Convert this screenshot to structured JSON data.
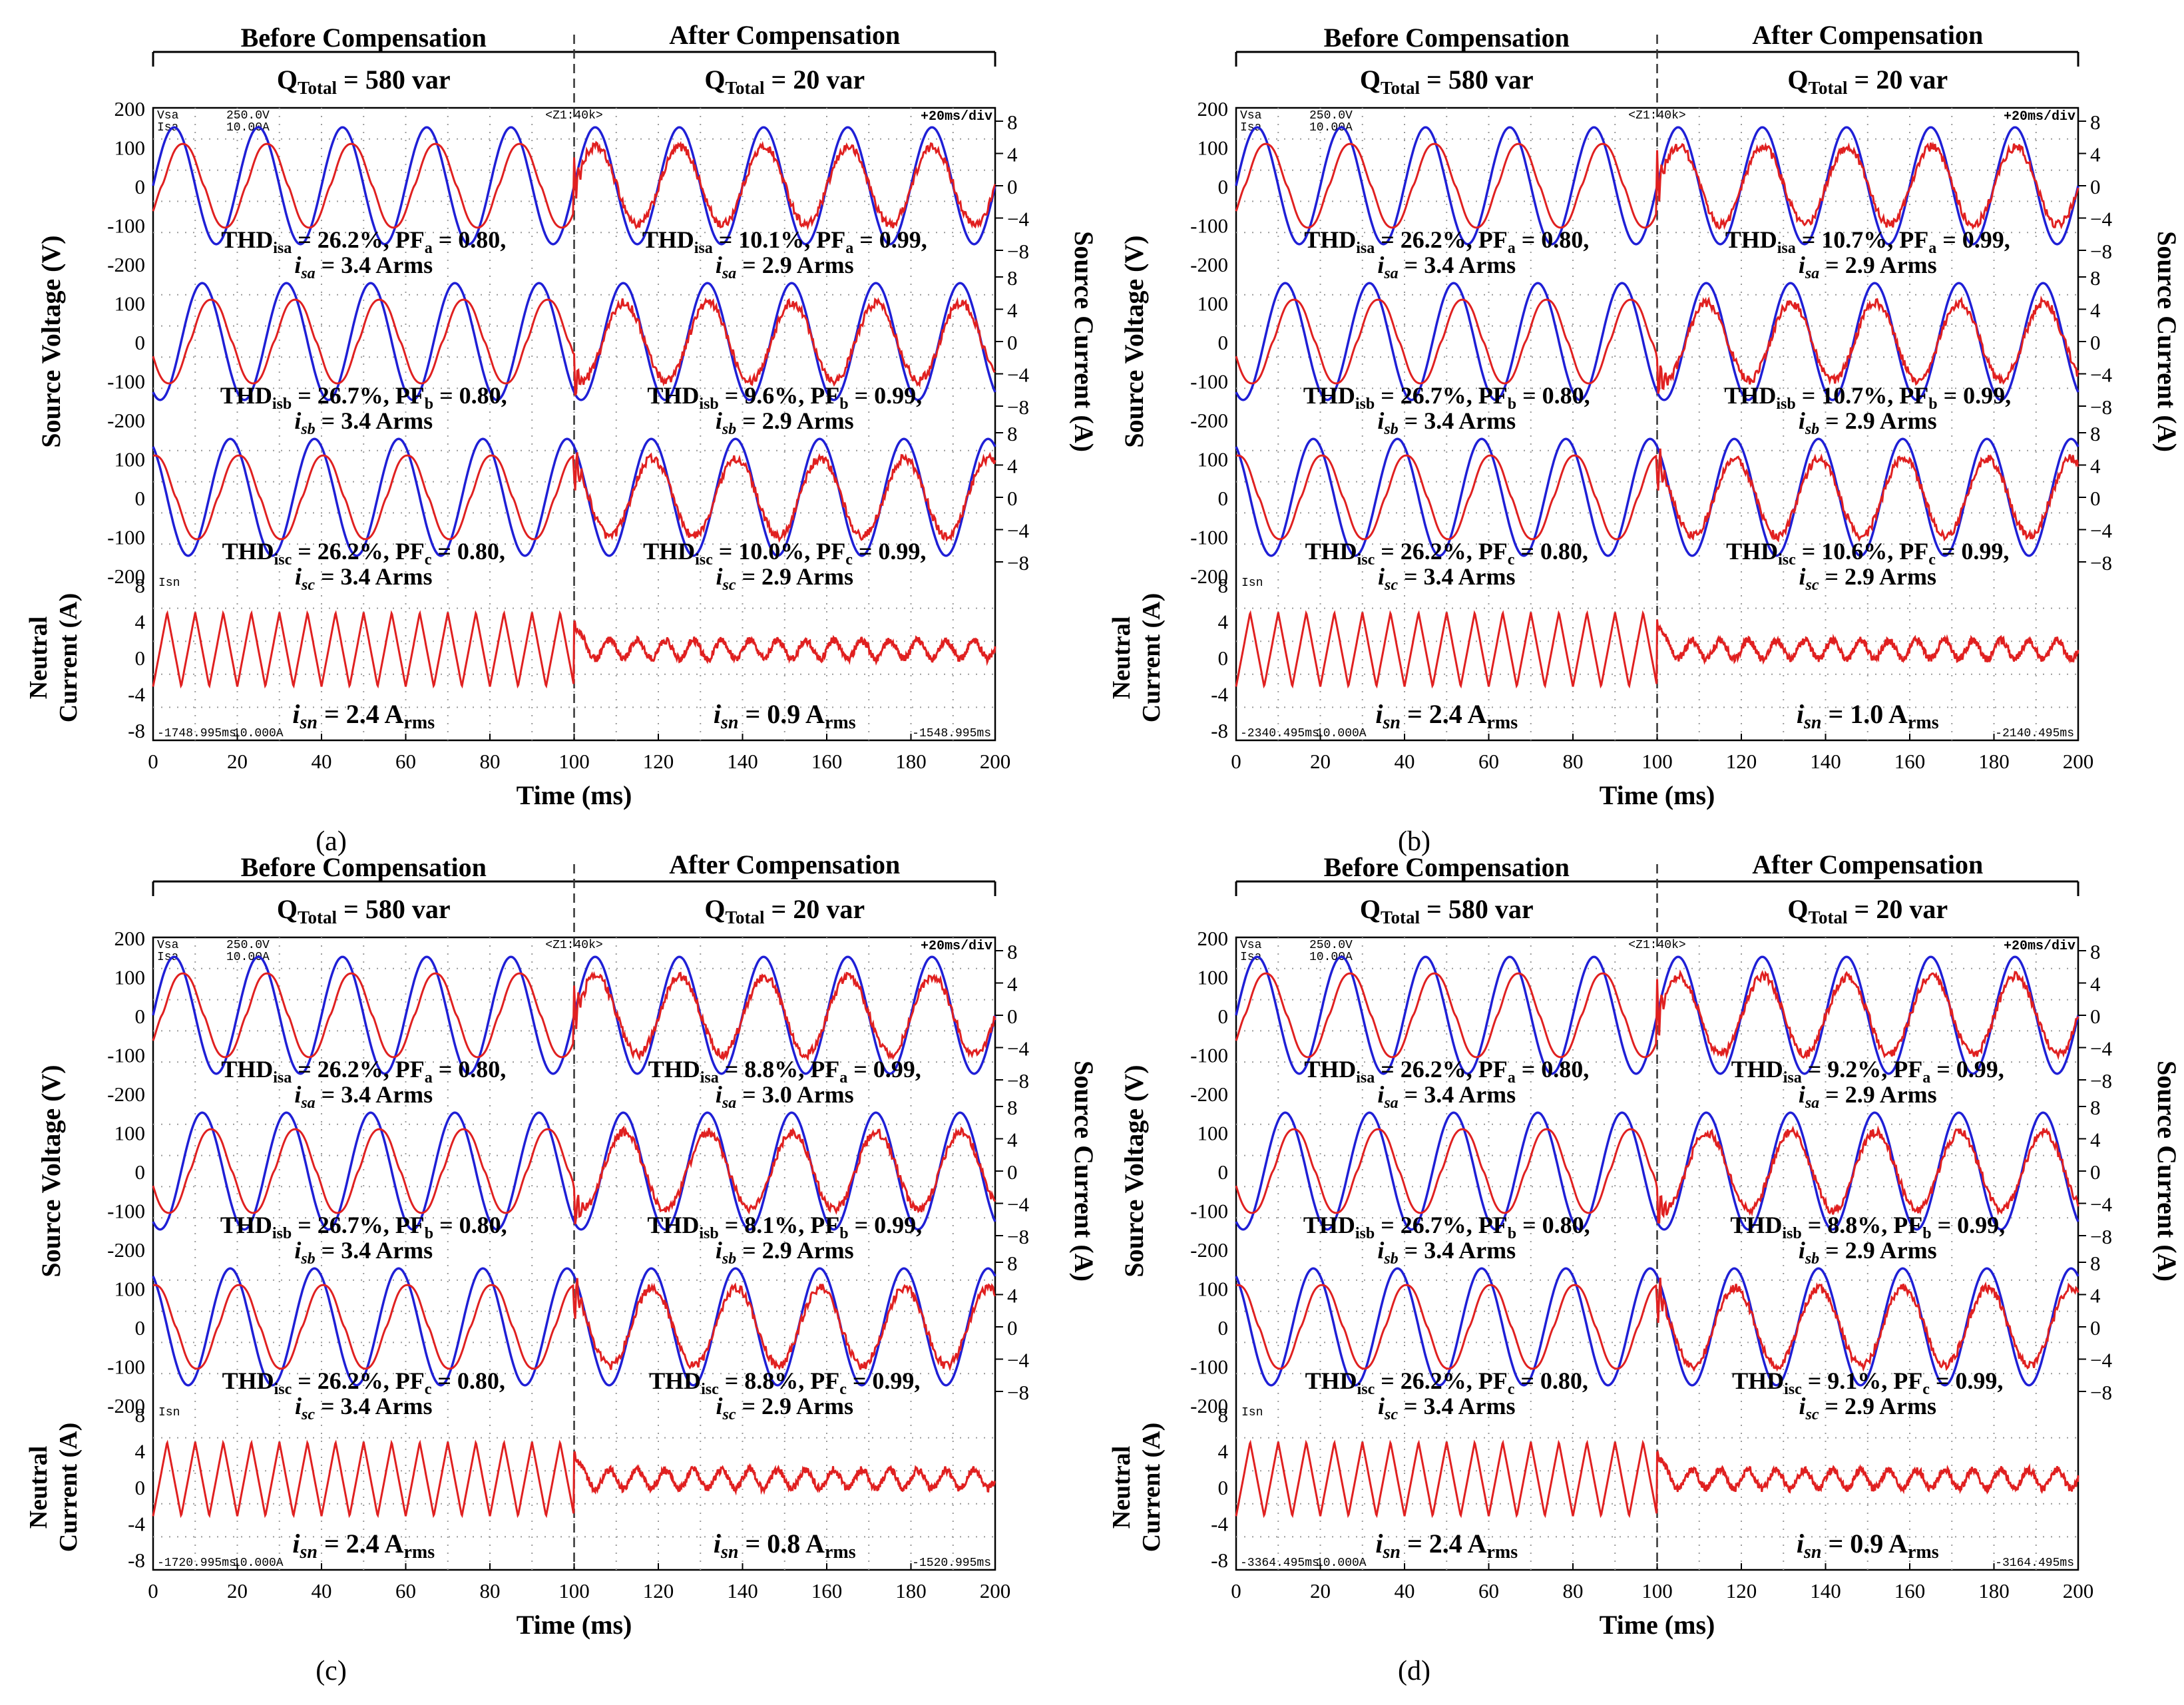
{
  "chart_data": [
    {
      "panel_label": "(a)",
      "type": "line",
      "header": {
        "before": "Before Compensation",
        "after": "After Compensation",
        "q_before": "580 var",
        "q_after": "20 var"
      },
      "scope": {
        "ch1_label": "Vsa",
        "ch1_scale": "250.0V",
        "ch2_label": "Isa",
        "ch2_scale": "10.00A",
        "zoom": "<Z1:40k>",
        "timebase": "+20ms/div",
        "t_start": "-1748.995ms",
        "t_end": "-1548.995ms",
        "isn_scale": "10.000A"
      },
      "x": {
        "label": "Time (ms)",
        "min": 0,
        "max": 200,
        "ticks": [
          0,
          20,
          40,
          60,
          80,
          100,
          120,
          140,
          160,
          180,
          200
        ]
      },
      "voltage_axis": {
        "label": "Source Voltage (V)",
        "ticks": [
          200,
          100,
          0,
          -100,
          -200
        ]
      },
      "current_axis": {
        "label": "Source Current (A)",
        "ticks": [
          8,
          4,
          0,
          -4,
          -8
        ]
      },
      "neutral_axis": {
        "label_line1": "Neutral",
        "label_line2": "Current (A)",
        "ticks": [
          8,
          4,
          0,
          -4,
          -8
        ]
      },
      "switch_time_ms": 100,
      "phases": [
        {
          "phase": "a",
          "before": {
            "thd": "26.2%",
            "pf": "0.80",
            "irms": "3.4 Arms"
          },
          "after": {
            "thd": "10.1%",
            "pf": "0.99",
            "irms": "2.9 Arms"
          }
        },
        {
          "phase": "b",
          "before": {
            "thd": "26.7%",
            "pf": "0.80",
            "irms": "3.4 Arms"
          },
          "after": {
            "thd": "9.6%",
            "pf": "0.99",
            "irms": "2.9 Arms"
          }
        },
        {
          "phase": "c",
          "before": {
            "thd": "26.2%",
            "pf": "0.80",
            "irms": "3.4 Arms"
          },
          "after": {
            "thd": "10.0%",
            "pf": "0.99",
            "irms": "2.9 Arms"
          }
        }
      ],
      "neutral": {
        "before": "2.4",
        "after": "0.9"
      }
    },
    {
      "panel_label": "(b)",
      "type": "line",
      "header": {
        "before": "Before Compensation",
        "after": "After Compensation",
        "q_before": "580 var",
        "q_after": "20 var"
      },
      "scope": {
        "ch1_label": "Vsa",
        "ch1_scale": "250.0V",
        "ch2_label": "Isa",
        "ch2_scale": "10.00A",
        "zoom": "<Z1:40k>",
        "timebase": "+20ms/div",
        "t_start": "-2340.495ms",
        "t_end": "-2140.495ms",
        "isn_scale": "10.000A"
      },
      "x": {
        "label": "Time (ms)",
        "min": 0,
        "max": 200,
        "ticks": [
          0,
          20,
          40,
          60,
          80,
          100,
          120,
          140,
          160,
          180,
          200
        ]
      },
      "voltage_axis": {
        "label": "Source Voltage (V)",
        "ticks": [
          200,
          100,
          0,
          -100,
          -200
        ]
      },
      "current_axis": {
        "label": "Source Current (A)",
        "ticks": [
          8,
          4,
          0,
          -4,
          -8
        ]
      },
      "neutral_axis": {
        "label_line1": "Neutral",
        "label_line2": "Current (A)",
        "ticks": [
          8,
          4,
          0,
          -4,
          -8
        ]
      },
      "switch_time_ms": 100,
      "phases": [
        {
          "phase": "a",
          "before": {
            "thd": "26.2%",
            "pf": "0.80",
            "irms": "3.4 Arms"
          },
          "after": {
            "thd": "10.7%",
            "pf": "0.99",
            "irms": "2.9 Arms"
          }
        },
        {
          "phase": "b",
          "before": {
            "thd": "26.7%",
            "pf": "0.80",
            "irms": "3.4 Arms"
          },
          "after": {
            "thd": "10.7%",
            "pf": "0.99",
            "irms": "2.9 Arms"
          }
        },
        {
          "phase": "c",
          "before": {
            "thd": "26.2%",
            "pf": "0.80",
            "irms": "3.4 Arms"
          },
          "after": {
            "thd": "10.6%",
            "pf": "0.99",
            "irms": "2.9 Arms"
          }
        }
      ],
      "neutral": {
        "before": "2.4",
        "after": "1.0"
      }
    },
    {
      "panel_label": "(c)",
      "type": "line",
      "header": {
        "before": "Before Compensation",
        "after": "After Compensation",
        "q_before": "580 var",
        "q_after": "20 var"
      },
      "scope": {
        "ch1_label": "Vsa",
        "ch1_scale": "250.0V",
        "ch2_label": "Isa",
        "ch2_scale": "10.00A",
        "zoom": "<Z1:40k>",
        "timebase": "+20ms/div",
        "t_start": "-1720.995ms",
        "t_end": "-1520.995ms",
        "isn_scale": "10.000A"
      },
      "x": {
        "label": "Time (ms)",
        "min": 0,
        "max": 200,
        "ticks": [
          0,
          20,
          40,
          60,
          80,
          100,
          120,
          140,
          160,
          180,
          200
        ]
      },
      "voltage_axis": {
        "label": "Source Voltage (V)",
        "ticks": [
          200,
          100,
          0,
          -100,
          -200
        ]
      },
      "current_axis": {
        "label": "Source Current (A)",
        "ticks": [
          8,
          4,
          0,
          -4,
          -8
        ]
      },
      "neutral_axis": {
        "label_line1": "Neutral",
        "label_line2": "Current (A)",
        "ticks": [
          8,
          4,
          0,
          -4,
          -8
        ]
      },
      "switch_time_ms": 100,
      "phases": [
        {
          "phase": "a",
          "before": {
            "thd": "26.2%",
            "pf": "0.80",
            "irms": "3.4 Arms"
          },
          "after": {
            "thd": "8.8%",
            "pf": "0.99",
            "irms": "3.0 Arms"
          }
        },
        {
          "phase": "b",
          "before": {
            "thd": "26.7%",
            "pf": "0.80",
            "irms": "3.4 Arms"
          },
          "after": {
            "thd": "8.1%",
            "pf": "0.99",
            "irms": "2.9 Arms"
          }
        },
        {
          "phase": "c",
          "before": {
            "thd": "26.2%",
            "pf": "0.80",
            "irms": "3.4 Arms"
          },
          "after": {
            "thd": "8.8%",
            "pf": "0.99",
            "irms": "2.9 Arms"
          }
        }
      ],
      "neutral": {
        "before": "2.4",
        "after": "0.8"
      }
    },
    {
      "panel_label": "(d)",
      "type": "line",
      "header": {
        "before": "Before Compensation",
        "after": "After Compensation",
        "q_before": "580 var",
        "q_after": "20 var"
      },
      "scope": {
        "ch1_label": "Vsa",
        "ch1_scale": "250.0V",
        "ch2_label": "Isa",
        "ch2_scale": "10.00A",
        "zoom": "<Z1:40k>",
        "timebase": "+20ms/div",
        "t_start": "-3364.495ms",
        "t_end": "-3164.495ms",
        "isn_scale": "10.000A"
      },
      "x": {
        "label": "Time (ms)",
        "min": 0,
        "max": 200,
        "ticks": [
          0,
          20,
          40,
          60,
          80,
          100,
          120,
          140,
          160,
          180,
          200
        ]
      },
      "voltage_axis": {
        "label": "Source Voltage (V)",
        "ticks": [
          200,
          100,
          0,
          -100,
          -200
        ]
      },
      "current_axis": {
        "label": "Source Current (A)",
        "ticks": [
          8,
          4,
          0,
          -4,
          -8
        ]
      },
      "neutral_axis": {
        "label_line1": "Neutral",
        "label_line2": "Current (A)",
        "ticks": [
          8,
          4,
          0,
          -4,
          -8
        ]
      },
      "switch_time_ms": 100,
      "phases": [
        {
          "phase": "a",
          "before": {
            "thd": "26.2%",
            "pf": "0.80",
            "irms": "3.4 Arms"
          },
          "after": {
            "thd": "9.2%",
            "pf": "0.99",
            "irms": "2.9 Arms"
          }
        },
        {
          "phase": "b",
          "before": {
            "thd": "26.7%",
            "pf": "0.80",
            "irms": "3.4 Arms"
          },
          "after": {
            "thd": "8.8%",
            "pf": "0.99",
            "irms": "2.9 Arms"
          }
        },
        {
          "phase": "c",
          "before": {
            "thd": "26.2%",
            "pf": "0.80",
            "irms": "3.4 Arms"
          },
          "after": {
            "thd": "9.1%",
            "pf": "0.99",
            "irms": "2.9 Arms"
          }
        }
      ],
      "neutral": {
        "before": "2.4",
        "after": "0.9"
      }
    }
  ],
  "colors": {
    "voltage": "#1f1fd6",
    "current": "#e02020",
    "grid_dot": "#9a9a9a",
    "axis": "#000000"
  }
}
